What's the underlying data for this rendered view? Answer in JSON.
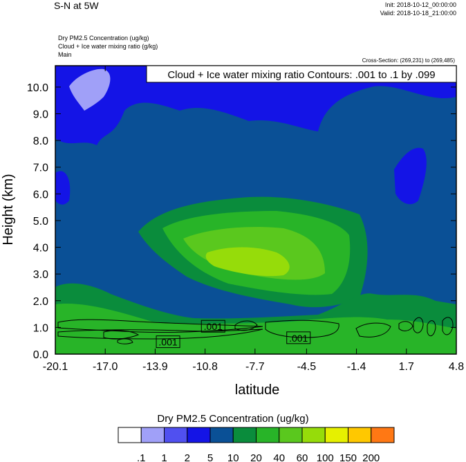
{
  "header": {
    "title": "S-N at 5W",
    "init": "Init: 2018-10-12_00:00:00",
    "valid": "Valid: 2018-10-18_21:00:00",
    "fields": [
      "Dry PM2.5 Concentration   (ug/kg)",
      "Cloud + Ice water mixing ratio   (g/kg)",
      "Main"
    ],
    "cross_section": "Cross-Section: (269,231) to (269,485)"
  },
  "chart_data": {
    "type": "heatmap",
    "title": "",
    "xlabel": "latitude",
    "ylabel": "Height (km)",
    "xlim": [
      -20.1,
      4.8
    ],
    "ylim": [
      0,
      10.8
    ],
    "x_ticks": [
      "-20.1",
      "-17.0",
      "-13.9",
      "-10.8",
      "-7.7",
      "-4.5",
      "-1.4",
      "1.7",
      "4.8"
    ],
    "y_ticks": [
      "0.0",
      "1.0",
      "2.0",
      "3.0",
      "4.0",
      "5.0",
      "6.0",
      "7.0",
      "8.0",
      "9.0",
      "10.0"
    ],
    "contour_label": "Cloud + Ice water mixing ratio Contours: .001 to .1 by .099",
    "contour_line_labels": [
      {
        "text": ".001",
        "lat": -10.3,
        "height": 1.03
      },
      {
        "text": ".001",
        "lat": -13.1,
        "height": 0.45
      },
      {
        "text": ".001",
        "lat": -5.0,
        "height": 0.6
      }
    ],
    "colorbar": {
      "title": "Dry PM2.5 Concentration  (ug/kg)",
      "levels": [
        ".1",
        "1",
        "2",
        "5",
        "10",
        "20",
        "40",
        "60",
        "100",
        "150",
        "200"
      ],
      "colors": [
        "#ffffff",
        "#a0a0f8",
        "#5050f0",
        "#1414e6",
        "#0a5096",
        "#0a8c3c",
        "#28b428",
        "#5ac81e",
        "#96dc0a",
        "#e6f000",
        "#ffc800",
        "#ff7814",
        "#ff1414"
      ]
    },
    "fields": {
      "background": "#0a5096",
      "regions": [
        {
          "color": "#1414e6",
          "y_from": 10.8,
          "y_to": 7.5,
          "coverage": "most of the top band"
        },
        {
          "color": "#a0a0f8",
          "lat": -18.2,
          "height": 10.2
        },
        {
          "color": "#0a8c3c",
          "lat": -8.0,
          "height": 3.8,
          "extent": "broad mid-level plume"
        },
        {
          "color": "#28b428",
          "lat": -7.8,
          "height": 3.5
        },
        {
          "color": "#5ac81e",
          "lat": -7.0,
          "height": 3.2
        },
        {
          "color": "#96dc0a",
          "lat": -7.2,
          "height": 3.0
        },
        {
          "color": "#0a8c3c",
          "y_from": 0,
          "y_to": 2.0,
          "coverage": "surface layer"
        },
        {
          "color": "#28b428",
          "y_from": 0,
          "y_to": 1.2,
          "coverage": "near-surface layer"
        }
      ]
    }
  }
}
